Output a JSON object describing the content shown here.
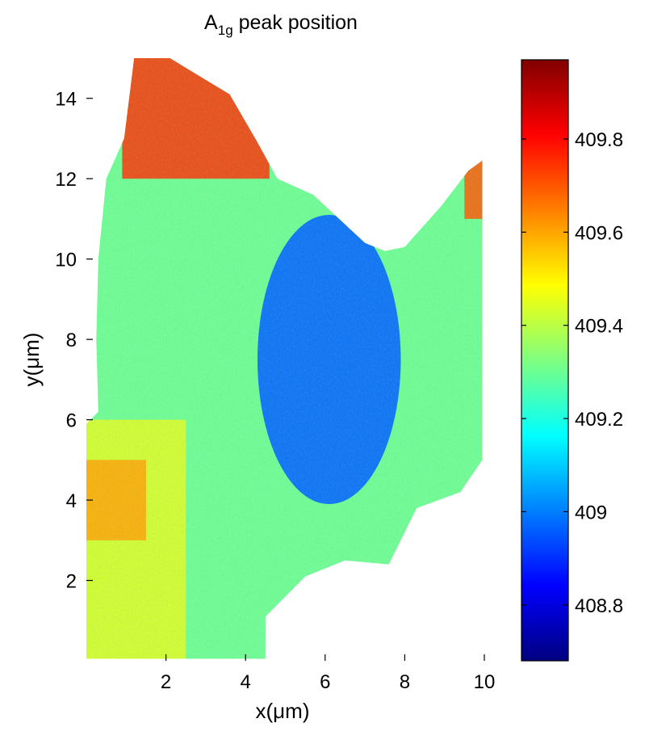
{
  "chart_data": {
    "type": "heatmap",
    "title_main": "A",
    "title_sub": "1g",
    "title_rest": " peak position",
    "xlabel": "x(μm)",
    "ylabel": "y(μm)",
    "xlim": [
      0,
      10
    ],
    "ylim": [
      0,
      15
    ],
    "xticks": [
      2,
      4,
      6,
      8,
      10
    ],
    "yticks": [
      2,
      4,
      6,
      8,
      10,
      12,
      14
    ],
    "colorbar": {
      "colormap": "jet",
      "range": [
        408.68,
        409.97
      ],
      "ticks": [
        408.8,
        409,
        409.2,
        409.4,
        409.6,
        409.8
      ],
      "tick_labels": [
        "408.8",
        "409",
        "409.2",
        "409.4",
        "409.6",
        "409.8"
      ]
    },
    "region_outline": [
      [
        0,
        0.05
      ],
      [
        4.5,
        0.05
      ],
      [
        4.5,
        1.1
      ],
      [
        5.5,
        2.1
      ],
      [
        6.5,
        2.5
      ],
      [
        7.6,
        2.4
      ],
      [
        8.3,
        3.8
      ],
      [
        9.4,
        4.2
      ],
      [
        9.95,
        5.0
      ],
      [
        9.95,
        12.45
      ],
      [
        9.6,
        12.2
      ],
      [
        8.9,
        11.3
      ],
      [
        8.0,
        10.3
      ],
      [
        7.5,
        10.2
      ],
      [
        7.0,
        10.4
      ],
      [
        5.7,
        11.6
      ],
      [
        4.8,
        12.0
      ],
      [
        4.3,
        12.9
      ],
      [
        3.6,
        14.1
      ],
      [
        2.1,
        15.0
      ],
      [
        1.2,
        15.0
      ],
      [
        0.95,
        13.0
      ],
      [
        0.5,
        12.0
      ],
      [
        0.3,
        10.0
      ],
      [
        0.25,
        8.0
      ],
      [
        0.3,
        6.2
      ],
      [
        0,
        5.9
      ]
    ],
    "value_regions": [
      {
        "label": "background",
        "value": 409.3
      },
      {
        "label": "left band",
        "x": [
          0,
          2.5
        ],
        "y": [
          0,
          6
        ],
        "value": 409.45
      },
      {
        "label": "top region",
        "x": [
          0.9,
          4.6
        ],
        "y": [
          12,
          15
        ],
        "value": 409.75
      },
      {
        "label": "central low region",
        "center": [
          6.1,
          7.5
        ],
        "radius": [
          1.8,
          3.6
        ],
        "value": 408.97
      },
      {
        "label": "right edge",
        "x": [
          9.5,
          10
        ],
        "y": [
          11,
          12.5
        ],
        "value": 409.7
      },
      {
        "label": "lower left band",
        "x": [
          0,
          1.5
        ],
        "y": [
          3,
          5
        ],
        "value": 409.6
      }
    ]
  }
}
